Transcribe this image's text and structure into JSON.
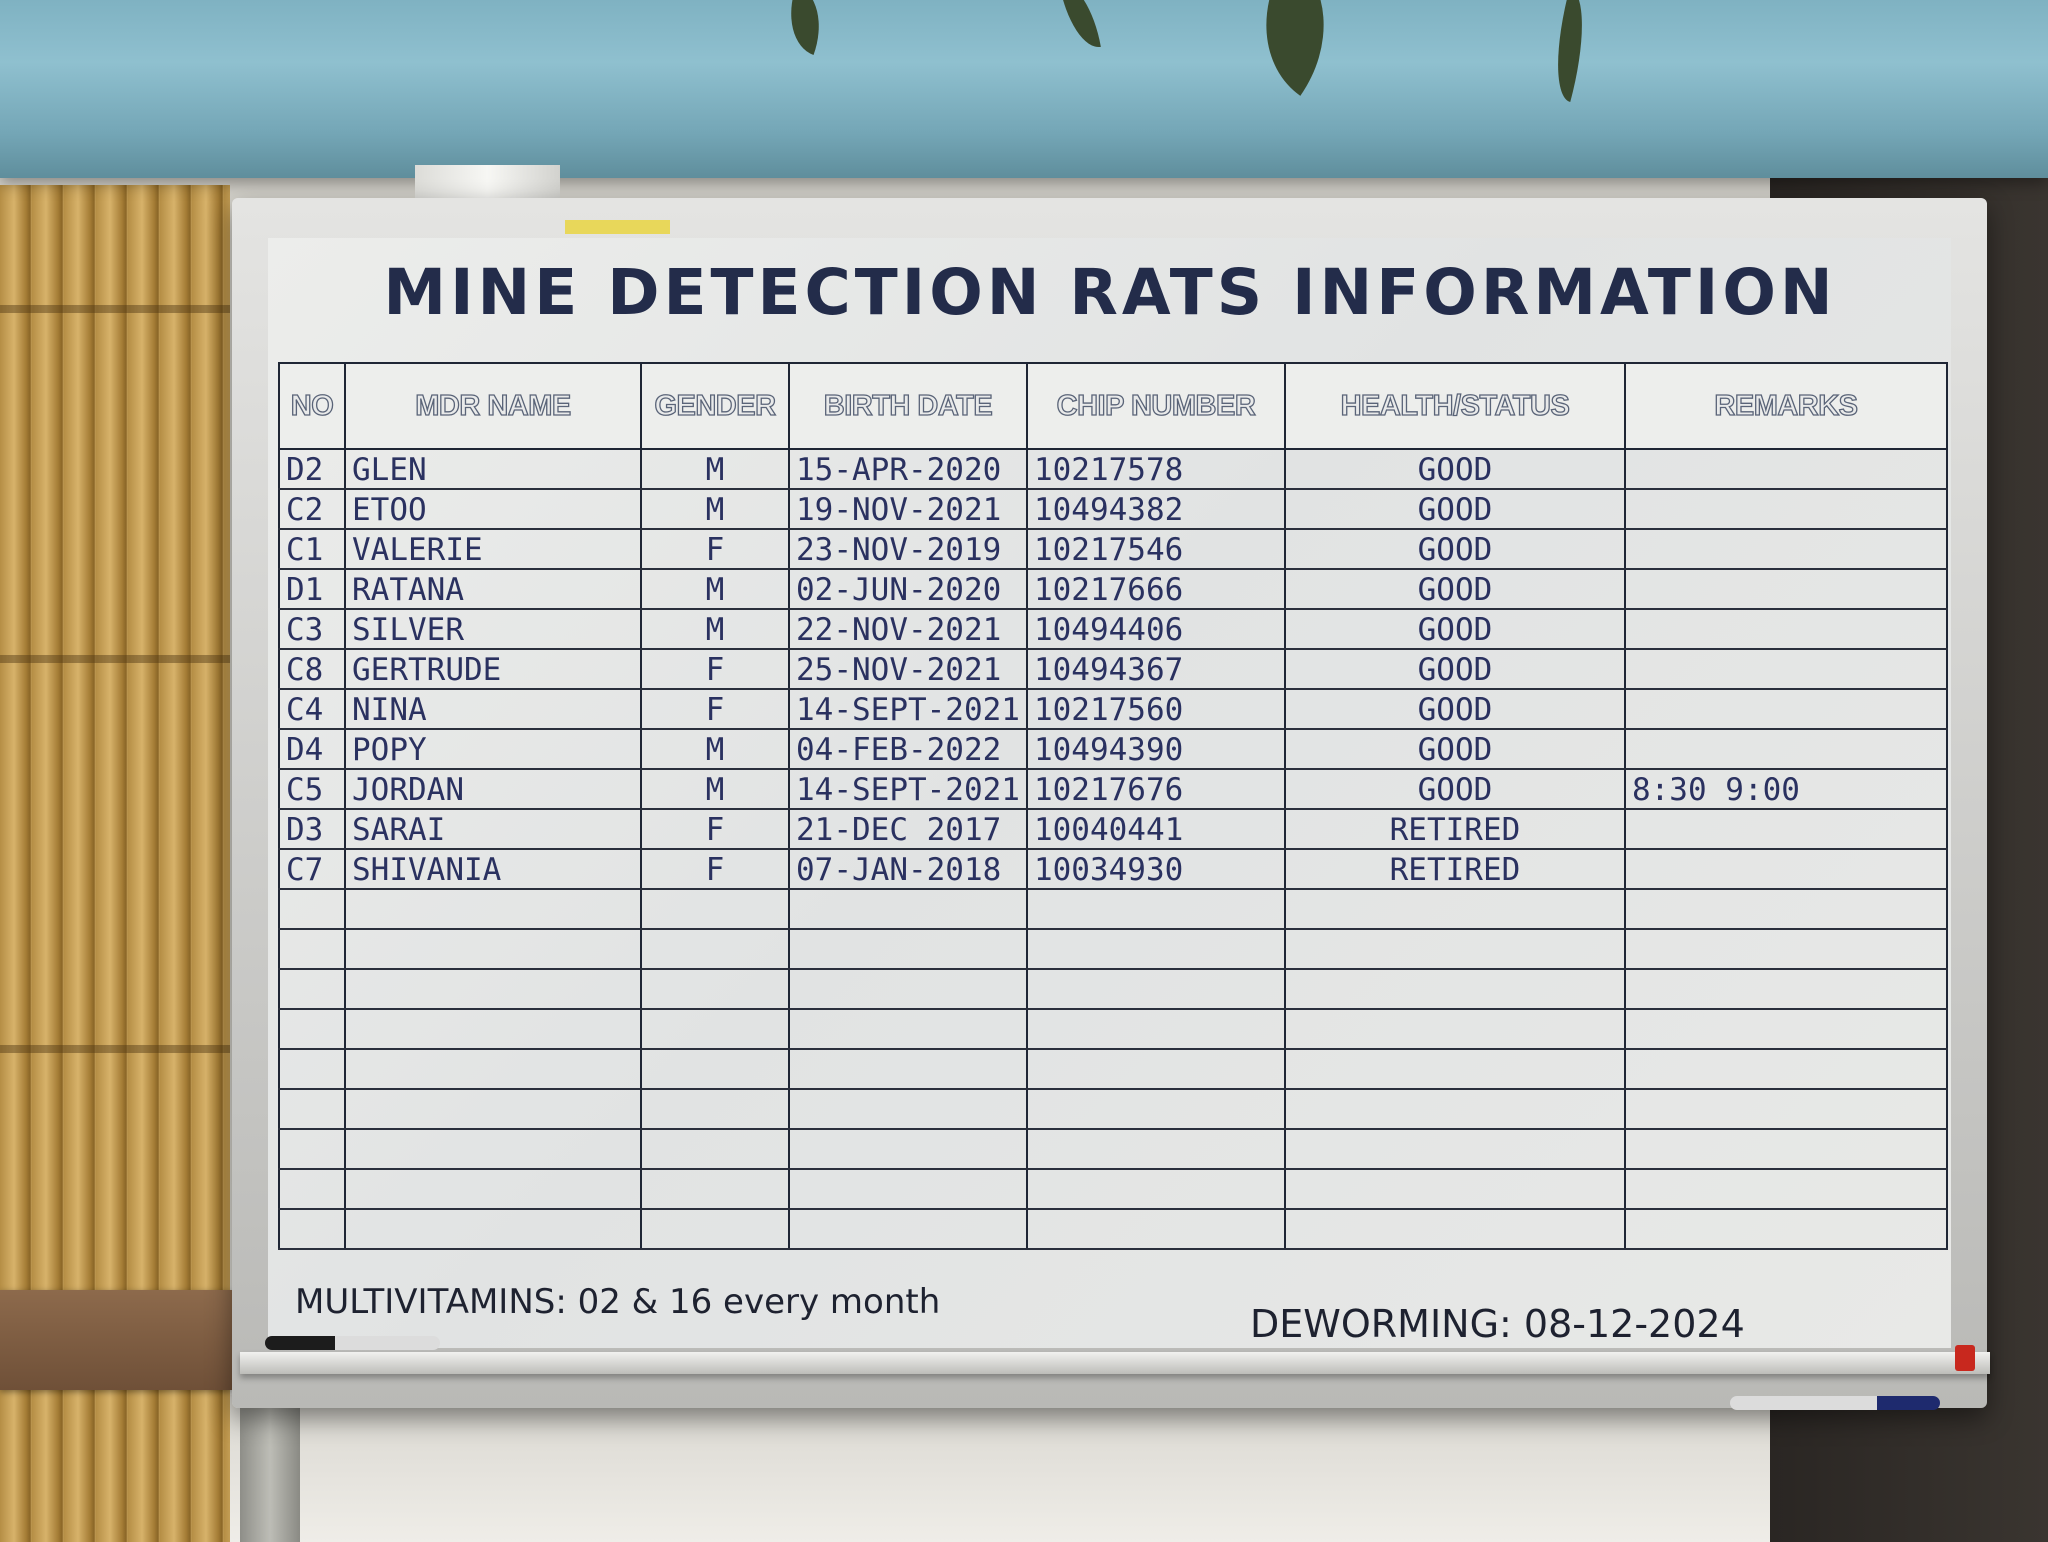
{
  "board": {
    "title": "MINE DETECTION RATS INFORMATION",
    "columns": [
      "NO",
      "MDR NAME",
      "GENDER",
      "BIRTH DATE",
      "CHIP NUMBER",
      "HEALTH/STATUS",
      "REMARKS"
    ],
    "rows": [
      {
        "no": "D2",
        "name": "GLEN",
        "gender": "M",
        "birth_date": "15-APR-2020",
        "chip": "10217578",
        "health": "GOOD",
        "remarks": ""
      },
      {
        "no": "C2",
        "name": "ETOO",
        "gender": "M",
        "birth_date": "19-NOV-2021",
        "chip": "10494382",
        "health": "GOOD",
        "remarks": ""
      },
      {
        "no": "C1",
        "name": "VALERIE",
        "gender": "F",
        "birth_date": "23-NOV-2019",
        "chip": "10217546",
        "health": "GOOD",
        "remarks": ""
      },
      {
        "no": "D1",
        "name": "RATANA",
        "gender": "M",
        "birth_date": "02-JUN-2020",
        "chip": "10217666",
        "health": "GOOD",
        "remarks": ""
      },
      {
        "no": "C3",
        "name": "SILVER",
        "gender": "M",
        "birth_date": "22-NOV-2021",
        "chip": "10494406",
        "health": "GOOD",
        "remarks": ""
      },
      {
        "no": "C8",
        "name": "GERTRUDE",
        "gender": "F",
        "birth_date": "25-NOV-2021",
        "chip": "10494367",
        "health": "GOOD",
        "remarks": ""
      },
      {
        "no": "C4",
        "name": "NINA",
        "gender": "F",
        "birth_date": "14-SEPT-2021",
        "chip": "10217560",
        "health": "GOOD",
        "remarks": ""
      },
      {
        "no": "D4",
        "name": "POPY",
        "gender": "M",
        "birth_date": "04-FEB-2022",
        "chip": "10494390",
        "health": "GOOD",
        "remarks": ""
      },
      {
        "no": "C5",
        "name": "JORDAN",
        "gender": "M",
        "birth_date": "14-SEPT-2021",
        "chip": "10217676",
        "health": "GOOD",
        "remarks": "8:30 9:00"
      },
      {
        "no": "D3",
        "name": "SARAI",
        "gender": "F",
        "birth_date": "21-DEC 2017",
        "chip": "10040441",
        "health": "RETIRED",
        "remarks": ""
      },
      {
        "no": "C7",
        "name": "SHIVANIA",
        "gender": "F",
        "birth_date": "07-JAN-2018",
        "chip": "10034930",
        "health": "RETIRED",
        "remarks": ""
      }
    ],
    "empty_rows": 9,
    "footer_left": "MULTIVITAMINS: 02 & 16 every month",
    "footer_right": "DEWORMING: 08-12-2024"
  },
  "colors": {
    "ink_blue": "#2a3160",
    "title_navy": "#232c4a",
    "board_white": "#e8e9e7"
  }
}
